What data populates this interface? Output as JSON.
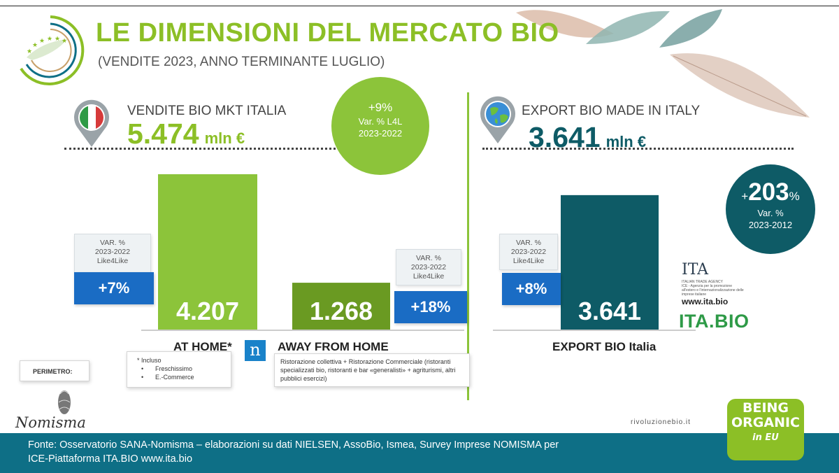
{
  "header": {
    "title": "LE DIMENSIONI DEL MERCATO BIO",
    "subtitle": "(VENDITE 2023, ANNO TERMINANTE LUGLIO)"
  },
  "italy": {
    "label": "VENDITE BIO MKT ITALIA",
    "value": "5.474",
    "unit": "mln €",
    "circle": {
      "pct": "+9%",
      "line1": "Var. % L4L",
      "line2": "2023-2022"
    }
  },
  "export": {
    "label": "EXPORT BIO MADE IN ITALY",
    "value": "3.641",
    "unit": "mln €",
    "circle": {
      "plus": "+",
      "pct": "203",
      "pct_sign": "%",
      "line1": "Var. %",
      "line2": "2023-2012"
    }
  },
  "var_boxes": {
    "at_home": {
      "l1": "VAR. %",
      "l2": "2023-2022",
      "l3": "Like4Like",
      "pct": "+7%"
    },
    "away": {
      "l1": "VAR. %",
      "l2": "2023-2022",
      "l3": "Like4Like",
      "pct": "+18%"
    },
    "export": {
      "l1": "VAR. %",
      "l2": "2023-2022",
      "l3": "Like4Like",
      "pct": "+8%"
    }
  },
  "chart_data": {
    "type": "bar",
    "categories": [
      "AT HOME*",
      "AWAY FROM HOME",
      "EXPORT BIO Italia"
    ],
    "values": [
      4207,
      1268,
      3641
    ],
    "value_labels": [
      "4.207",
      "1.268",
      "3.641"
    ],
    "colors": [
      "#8cc43a",
      "#6a9a22",
      "#0e5b66"
    ],
    "unit": "mln €",
    "title": "",
    "xlabel": "",
    "ylabel": ""
  },
  "notes": {
    "perimeter": "PERIMETRO:",
    "incl_title": "* Incluso",
    "incl_items": [
      "Freschissimo",
      "E.-Commerce"
    ],
    "away_note": "Ristorazione collettiva + Ristorazione Commerciale (ristoranti specializzati bio, ristoranti e bar «generalisti» + agriturismi, altri pubblici esercizi)"
  },
  "logos": {
    "n_logo": "n",
    "nomisma": "Nomisma",
    "ita": "ITA",
    "ita_sub": "ITALIAN TRADE AGENCY",
    "ita_sub2": "ICE - Agenzia per la promozione all'estero e l'internazionalizzazione delle imprese italiane",
    "ita_url": "www.ita.bio",
    "ita_bio": "ITA.BIO",
    "rivoluzione": "rivoluzionebio.it",
    "being_1": "BEING",
    "being_2": "ORGANIC",
    "being_3": "in EU"
  },
  "footer": {
    "line1": "Fonte: Osservatorio SANA-Nomisma – elaborazioni su dati NIELSEN, AssoBio, Ismea, Survey Imprese NOMISMA per",
    "line2": "ICE-Piattaforma ITA.BIO www.ita.bio"
  },
  "colors": {
    "green": "#8cbf26",
    "teal": "#0e5b66",
    "blue": "#1a6cc4",
    "footer": "#0e6f86"
  }
}
